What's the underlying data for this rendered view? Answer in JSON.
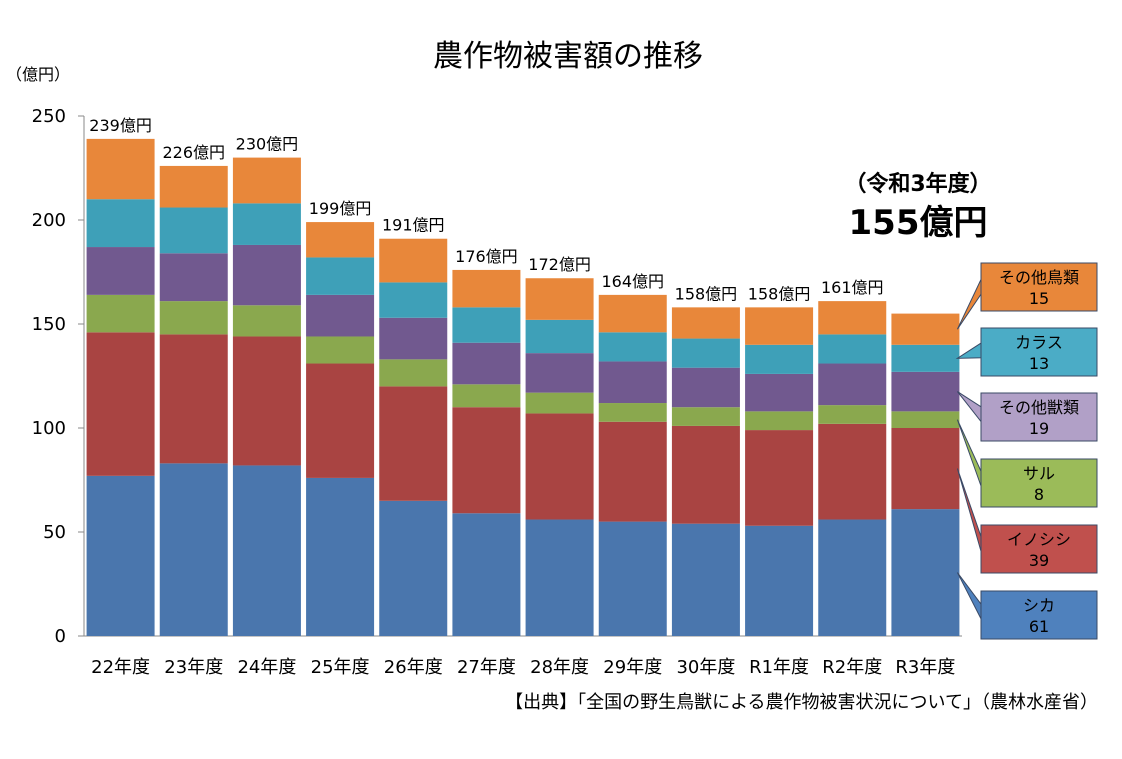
{
  "chart_data": {
    "type": "bar",
    "stacked": true,
    "title": "農作物被害額の推移",
    "ylabel": "（億円）",
    "ylim": [
      0,
      250
    ],
    "yticks": [
      0,
      50,
      100,
      150,
      200,
      250
    ],
    "categories": [
      "22年度",
      "23年度",
      "24年度",
      "25年度",
      "26年度",
      "27年度",
      "28年度",
      "29年度",
      "30年度",
      "R1年度",
      "R2年度",
      "R3年度"
    ],
    "totals": [
      239,
      226,
      230,
      199,
      191,
      176,
      172,
      164,
      158,
      158,
      161,
      155
    ],
    "total_labels": [
      "239億円",
      "226億円",
      "230億円",
      "199億円",
      "191億円",
      "176億円",
      "172億円",
      "164億円",
      "158億円",
      "158億円",
      "161億円",
      ""
    ],
    "series": [
      {
        "name": "シカ",
        "color": "#4a76ad",
        "values": [
          77,
          83,
          82,
          76,
          65,
          59,
          56,
          55,
          54,
          53,
          56,
          61
        ]
      },
      {
        "name": "イノシシ",
        "color": "#a94442",
        "values": [
          69,
          62,
          62,
          55,
          55,
          51,
          51,
          48,
          47,
          46,
          46,
          39
        ]
      },
      {
        "name": "サル",
        "color": "#8aa84e",
        "values": [
          18,
          16,
          15,
          13,
          13,
          11,
          10,
          9,
          9,
          9,
          9,
          8
        ]
      },
      {
        "name": "その他獣類",
        "color": "#71598f",
        "values": [
          23,
          23,
          29,
          20,
          20,
          20,
          19,
          20,
          19,
          18,
          20,
          19
        ]
      },
      {
        "name": "カラス",
        "color": "#3ea0b8",
        "values": [
          23,
          22,
          20,
          18,
          17,
          17,
          16,
          14,
          14,
          14,
          14,
          13
        ]
      },
      {
        "name": "その他鳥類",
        "color": "#e8873a",
        "values": [
          29,
          20,
          22,
          17,
          21,
          18,
          20,
          18,
          15,
          18,
          16,
          15
        ]
      }
    ],
    "legend_boxes": [
      {
        "name": "その他鳥類",
        "value": "15",
        "color": "#e8873a"
      },
      {
        "name": "カラス",
        "value": "13",
        "color": "#4bacc6"
      },
      {
        "name": "その他獣類",
        "value": "19",
        "color": "#b1a0c7"
      },
      {
        "name": "サル",
        "value": "8",
        "color": "#9bbb59"
      },
      {
        "name": "イノシシ",
        "value": "39",
        "color": "#c0504d"
      },
      {
        "name": "シカ",
        "value": "61",
        "color": "#4f81bd"
      }
    ],
    "highlight": {
      "label": "（令和3年度）",
      "value": "155億円"
    },
    "source": "【出典】「全国の野生鳥獣による農作物被害状況について」（農林水産省）"
  }
}
